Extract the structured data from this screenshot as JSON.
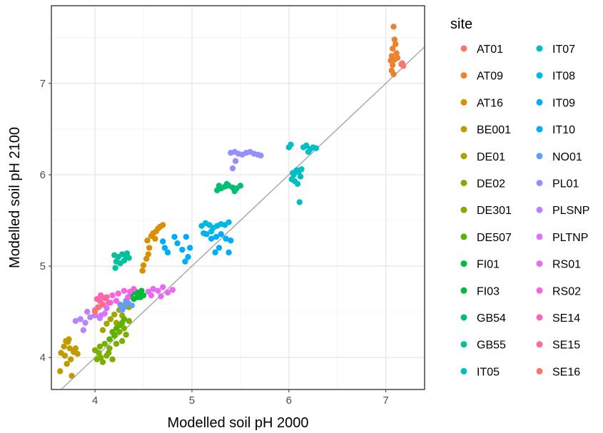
{
  "chart_data": {
    "type": "scatter",
    "xlabel": "Modelled soil pH 2000",
    "ylabel": "Modelled soil pH 2100",
    "xlim": [
      3.55,
      7.4
    ],
    "ylim": [
      3.65,
      7.85
    ],
    "x_ticks": [
      4,
      5,
      6,
      7
    ],
    "y_ticks": [
      4,
      5,
      6,
      7
    ],
    "grid": true,
    "reference_line": {
      "slope": 1,
      "intercept": 0,
      "color": "#a6a6a6"
    },
    "legend": {
      "title": "site",
      "placement": "right",
      "columns": 2
    },
    "series": [
      {
        "name": "AT01",
        "color": "#F8766D",
        "points": [
          [
            7.16,
            7.21
          ],
          [
            7.18,
            7.19
          ],
          [
            7.17,
            7.22
          ]
        ]
      },
      {
        "name": "AT09",
        "color": "#EA8331",
        "points": [
          [
            7.08,
            7.62
          ],
          [
            7.09,
            7.48
          ],
          [
            7.1,
            7.43
          ],
          [
            7.07,
            7.38
          ],
          [
            7.11,
            7.33
          ],
          [
            7.06,
            7.3
          ],
          [
            7.09,
            7.26
          ],
          [
            7.05,
            7.25
          ],
          [
            7.12,
            7.28
          ],
          [
            7.07,
            7.2
          ],
          [
            7.06,
            7.14
          ],
          [
            7.08,
            7.1
          ]
        ]
      },
      {
        "name": "AT16",
        "color": "#D89000",
        "points": [
          [
            4.54,
            5.28
          ],
          [
            4.58,
            5.33
          ],
          [
            4.6,
            5.36
          ],
          [
            4.63,
            5.38
          ],
          [
            4.65,
            5.41
          ],
          [
            4.67,
            5.43
          ],
          [
            4.7,
            5.45
          ],
          [
            4.56,
            5.2
          ],
          [
            4.55,
            5.13
          ],
          [
            4.53,
            5.08
          ],
          [
            4.5,
            5.01
          ],
          [
            4.49,
            4.95
          ],
          [
            4.62,
            5.3
          ]
        ]
      },
      {
        "name": "BE001",
        "color": "#C09B00",
        "points": [
          [
            3.65,
            4.05
          ],
          [
            3.68,
            4.12
          ],
          [
            3.72,
            4.17
          ],
          [
            3.74,
            4.1
          ],
          [
            3.69,
            4.02
          ],
          [
            3.78,
            4.06
          ],
          [
            3.75,
            3.98
          ],
          [
            3.71,
            3.93
          ],
          [
            3.64,
            3.85
          ],
          [
            3.76,
            3.8
          ],
          [
            3.8,
            4.1
          ],
          [
            3.82,
            4.04
          ],
          [
            3.7,
            4.18
          ],
          [
            3.73,
            4.2
          ]
        ]
      },
      {
        "name": "DE01",
        "color": "#A3A500",
        "points": [
          [
            4.08,
            4.3
          ],
          [
            4.12,
            4.37
          ],
          [
            4.16,
            4.42
          ],
          [
            4.2,
            4.47
          ],
          [
            4.25,
            4.52
          ],
          [
            4.3,
            4.57
          ],
          [
            4.35,
            4.55
          ],
          [
            4.28,
            4.46
          ],
          [
            4.22,
            4.38
          ]
        ]
      },
      {
        "name": "DE02",
        "color": "#7CAE00",
        "points": [
          [
            4.15,
            4.2
          ],
          [
            4.2,
            4.25
          ],
          [
            4.25,
            4.28
          ],
          [
            4.3,
            4.32
          ],
          [
            4.32,
            4.25
          ],
          [
            4.28,
            4.18
          ],
          [
            4.22,
            4.15
          ],
          [
            4.35,
            4.4
          ]
        ]
      },
      {
        "name": "DE301",
        "color": "#7CAE00",
        "points": [
          [
            4.0,
            4.08
          ],
          [
            4.05,
            4.12
          ],
          [
            4.1,
            4.15
          ],
          [
            4.15,
            4.1
          ],
          [
            4.12,
            4.02
          ],
          [
            4.06,
            4.0
          ],
          [
            4.02,
            3.98
          ],
          [
            4.08,
            3.95
          ],
          [
            4.14,
            4.05
          ],
          [
            4.18,
            3.98
          ],
          [
            4.04,
            4.05
          ]
        ]
      },
      {
        "name": "DE507",
        "color": "#5BB300",
        "points": [
          [
            4.18,
            4.28
          ],
          [
            4.22,
            4.32
          ],
          [
            4.25,
            4.35
          ],
          [
            4.28,
            4.38
          ],
          [
            4.3,
            4.42
          ],
          [
            4.2,
            4.24
          ],
          [
            4.15,
            4.2
          ]
        ]
      },
      {
        "name": "FI01",
        "color": "#00BA38",
        "points": [
          [
            4.38,
            4.7
          ],
          [
            4.42,
            4.72
          ],
          [
            4.46,
            4.71
          ],
          [
            4.5,
            4.68
          ],
          [
            4.44,
            4.66
          ],
          [
            4.48,
            4.73
          ]
        ]
      },
      {
        "name": "FI03",
        "color": "#00BA38",
        "points": [
          [
            4.4,
            4.64
          ],
          [
            4.44,
            4.69
          ],
          [
            4.47,
            4.66
          ],
          [
            4.36,
            4.67
          ]
        ]
      },
      {
        "name": "GB54",
        "color": "#00BF74",
        "points": [
          [
            5.26,
            5.83
          ],
          [
            5.3,
            5.85
          ],
          [
            5.34,
            5.87
          ],
          [
            5.38,
            5.88
          ],
          [
            5.42,
            5.86
          ],
          [
            5.46,
            5.85
          ],
          [
            5.5,
            5.88
          ],
          [
            5.36,
            5.9
          ],
          [
            5.44,
            5.82
          ],
          [
            5.28,
            5.88
          ]
        ]
      },
      {
        "name": "GB55",
        "color": "#00C19F",
        "points": [
          [
            4.2,
            5.12
          ],
          [
            4.24,
            5.1
          ],
          [
            4.28,
            5.13
          ],
          [
            4.32,
            5.11
          ],
          [
            4.35,
            5.09
          ],
          [
            4.22,
            5.05
          ],
          [
            4.26,
            5.03
          ],
          [
            4.21,
            4.98
          ],
          [
            4.3,
            5.06
          ],
          [
            4.33,
            5.14
          ]
        ]
      },
      {
        "name": "IT05",
        "color": "#00BFC4",
        "points": [
          [
            6.0,
            6.3
          ],
          [
            6.02,
            6.33
          ],
          [
            6.15,
            6.3
          ],
          [
            6.18,
            6.32
          ],
          [
            6.22,
            6.28
          ],
          [
            6.25,
            6.3
          ],
          [
            6.28,
            6.29
          ],
          [
            6.2,
            6.25
          ]
        ]
      },
      {
        "name": "IT07",
        "color": "#00BFC4",
        "points": [
          [
            6.03,
            5.95
          ],
          [
            6.05,
            6.0
          ],
          [
            6.08,
            6.05
          ],
          [
            6.1,
            6.03
          ],
          [
            6.12,
            5.98
          ],
          [
            6.06,
            5.93
          ],
          [
            6.09,
            5.9
          ],
          [
            6.11,
            5.7
          ],
          [
            6.04,
            6.02
          ],
          [
            6.13,
            6.06
          ]
        ]
      },
      {
        "name": "IT08",
        "color": "#00B9E3",
        "points": [
          [
            5.1,
            5.44
          ],
          [
            5.14,
            5.47
          ],
          [
            5.18,
            5.45
          ],
          [
            5.22,
            5.42
          ],
          [
            5.26,
            5.44
          ],
          [
            5.3,
            5.46
          ],
          [
            5.34,
            5.45
          ],
          [
            5.38,
            5.48
          ],
          [
            5.12,
            5.36
          ],
          [
            5.2,
            5.38
          ]
        ]
      },
      {
        "name": "IT09",
        "color": "#00ADFA",
        "points": [
          [
            5.15,
            5.35
          ],
          [
            5.2,
            5.3
          ],
          [
            5.25,
            5.32
          ],
          [
            5.3,
            5.35
          ],
          [
            5.35,
            5.3
          ],
          [
            5.28,
            5.2
          ],
          [
            5.24,
            5.15
          ],
          [
            5.38,
            5.15
          ],
          [
            5.4,
            5.28
          ]
        ]
      },
      {
        "name": "IT10",
        "color": "#00ADFA",
        "points": [
          [
            4.7,
            5.27
          ],
          [
            4.72,
            5.2
          ],
          [
            4.75,
            5.15
          ],
          [
            4.82,
            5.32
          ],
          [
            4.85,
            5.25
          ],
          [
            4.9,
            5.18
          ],
          [
            4.94,
            5.32
          ],
          [
            4.96,
            5.1
          ],
          [
            4.93,
            5.05
          ],
          [
            4.98,
            5.2
          ]
        ]
      },
      {
        "name": "NO01",
        "color": "#619CFF",
        "points": [
          [
            4.26,
            4.58
          ],
          [
            4.3,
            4.55
          ],
          [
            4.34,
            4.6
          ],
          [
            4.38,
            4.57
          ],
          [
            4.32,
            4.62
          ],
          [
            4.28,
            4.52
          ]
        ]
      },
      {
        "name": "PL01",
        "color": "#9590FF",
        "points": [
          [
            5.4,
            6.24
          ],
          [
            5.44,
            6.25
          ],
          [
            5.48,
            6.23
          ],
          [
            5.52,
            6.22
          ],
          [
            5.56,
            6.24
          ],
          [
            5.6,
            6.25
          ],
          [
            5.64,
            6.23
          ],
          [
            5.68,
            6.22
          ],
          [
            5.71,
            6.21
          ],
          [
            5.45,
            6.15
          ],
          [
            5.42,
            6.07
          ]
        ]
      },
      {
        "name": "PLSNP",
        "color": "#B983FF",
        "points": [
          [
            3.8,
            4.4
          ],
          [
            3.85,
            4.42
          ],
          [
            3.9,
            4.38
          ],
          [
            3.95,
            4.44
          ],
          [
            4.0,
            4.46
          ],
          [
            4.05,
            4.43
          ],
          [
            3.88,
            4.3
          ],
          [
            3.92,
            4.5
          ]
        ]
      },
      {
        "name": "PLTNP",
        "color": "#DB72FB",
        "points": [
          [
            4.0,
            4.52
          ],
          [
            4.04,
            4.55
          ],
          [
            4.08,
            4.58
          ],
          [
            4.12,
            4.54
          ],
          [
            4.16,
            4.6
          ],
          [
            4.1,
            4.48
          ],
          [
            4.06,
            4.46
          ]
        ]
      },
      {
        "name": "RS01",
        "color": "#E76BF3",
        "points": [
          [
            4.55,
            4.72
          ],
          [
            4.6,
            4.75
          ],
          [
            4.65,
            4.73
          ],
          [
            4.7,
            4.77
          ],
          [
            4.75,
            4.71
          ],
          [
            4.8,
            4.74
          ],
          [
            4.58,
            4.68
          ],
          [
            4.68,
            4.67
          ]
        ]
      },
      {
        "name": "RS02",
        "color": "#F564E3",
        "points": [
          [
            4.24,
            4.7
          ],
          [
            4.3,
            4.73
          ],
          [
            4.36,
            4.72
          ],
          [
            4.4,
            4.75
          ],
          [
            4.18,
            4.68
          ],
          [
            4.22,
            4.62
          ],
          [
            4.34,
            4.66
          ]
        ]
      },
      {
        "name": "SE14",
        "color": "#FF62BC",
        "points": [
          [
            4.06,
            4.68
          ],
          [
            4.1,
            4.65
          ],
          [
            4.14,
            4.6
          ],
          [
            4.02,
            4.64
          ]
        ]
      },
      {
        "name": "SE15",
        "color": "#FF6C91",
        "points": [
          [
            4.05,
            4.62
          ],
          [
            4.08,
            4.58
          ],
          [
            4.12,
            4.66
          ]
        ]
      },
      {
        "name": "SE16",
        "color": "#F8766D",
        "points": [
          [
            4.0,
            4.5
          ],
          [
            4.03,
            4.55
          ]
        ]
      }
    ]
  }
}
